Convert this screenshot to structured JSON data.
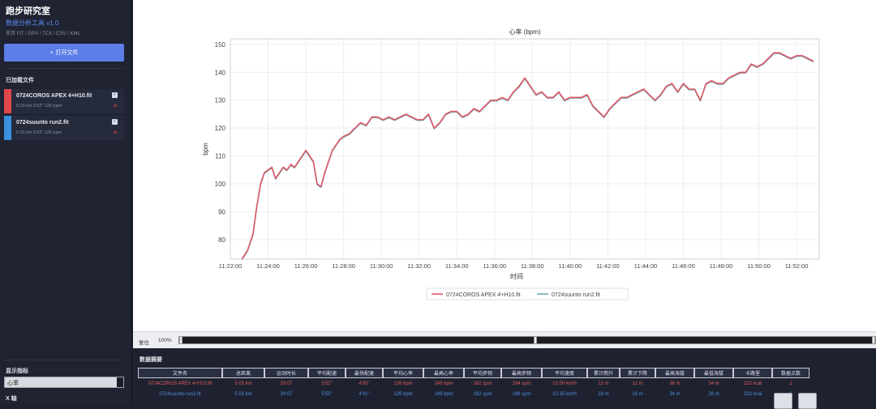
{
  "sidebar": {
    "title": "跑步研究室",
    "subtitle": "数据分析工具 v1.0",
    "formats": "支持 FIT / GPX / TCX / CSV / KML",
    "open_button": "打开文件",
    "loaded_header": "已加载文件",
    "files": [
      {
        "name": "0724COROS APEX 4+H10.fit",
        "meta": "5.03 km  5'52\"  126 bpm",
        "color": "#e0464a"
      },
      {
        "name": "0724suunto run2.fit",
        "meta": "5.03 km  5'53\"  126 bpm",
        "color": "#3a8fe0"
      }
    ],
    "metric_header": "显示指标",
    "metric_value": "心率",
    "xaxis_header": "X 轴"
  },
  "chart_data": {
    "type": "line",
    "title": "心率 (bpm)",
    "xlabel": "时间",
    "ylabel": "bpm",
    "ylim": [
      73,
      152
    ],
    "yticks": [
      80,
      90,
      100,
      110,
      120,
      130,
      140,
      150
    ],
    "xticks": [
      "11:22:00",
      "11:24:00",
      "11:26:00",
      "11:28:00",
      "11:30:00",
      "11:32:00",
      "11:34:00",
      "11:36:00",
      "11:38:00",
      "11:40:00",
      "11:42:00",
      "11:44:00",
      "11:46:00",
      "11:48:00",
      "11:50:00",
      "11:52:00"
    ],
    "xlim_minutes": [
      0,
      31.2
    ],
    "grid": true,
    "legend_position": "bottom",
    "x_minutes": [
      0.6,
      0.9,
      1.2,
      1.4,
      1.6,
      1.8,
      2.0,
      2.2,
      2.4,
      2.6,
      2.8,
      3.0,
      3.2,
      3.4,
      3.6,
      3.8,
      4.0,
      4.2,
      4.4,
      4.6,
      4.8,
      5.0,
      5.2,
      5.4,
      5.6,
      5.8,
      6.0,
      6.3,
      6.6,
      6.9,
      7.2,
      7.5,
      7.8,
      8.1,
      8.4,
      8.7,
      9.0,
      9.3,
      9.6,
      9.9,
      10.2,
      10.5,
      10.8,
      11.1,
      11.4,
      11.7,
      12.0,
      12.3,
      12.6,
      12.9,
      13.2,
      13.5,
      13.8,
      14.1,
      14.4,
      14.7,
      15.0,
      15.3,
      15.6,
      15.9,
      16.2,
      16.5,
      16.8,
      17.1,
      17.4,
      17.7,
      18.0,
      18.3,
      18.6,
      18.9,
      19.2,
      19.5,
      19.8,
      20.1,
      20.4,
      20.7,
      21.0,
      21.3,
      21.6,
      21.9,
      22.2,
      22.5,
      22.8,
      23.1,
      23.4,
      23.7,
      24.0,
      24.3,
      24.6,
      24.9,
      25.2,
      25.5,
      25.8,
      26.1,
      26.4,
      26.7,
      27.0,
      27.3,
      27.6,
      27.9,
      28.2,
      28.5,
      28.8,
      29.1,
      29.4,
      29.7,
      30.0,
      30.3,
      30.6,
      30.9
    ],
    "series": [
      {
        "name": "0724COROS APEX 4+H10.fit",
        "color": "#e05a66",
        "values": [
          73,
          76,
          82,
          92,
          100,
          104,
          105,
          106,
          102,
          104,
          106,
          105,
          107,
          106,
          108,
          110,
          112,
          110,
          108,
          100,
          99,
          104,
          108,
          112,
          114,
          116,
          117,
          118,
          120,
          122,
          121,
          124,
          124,
          123,
          124,
          123,
          124,
          125,
          124,
          123,
          123,
          125,
          120,
          122,
          125,
          126,
          126,
          124,
          125,
          127,
          126,
          128,
          130,
          130,
          131,
          130,
          133,
          135,
          138,
          135,
          132,
          133,
          131,
          131,
          133,
          130,
          131,
          131,
          131,
          132,
          128,
          126,
          124,
          127,
          129,
          131,
          131,
          132,
          133,
          134,
          132,
          130,
          132,
          135,
          136,
          133,
          136,
          134,
          134,
          130,
          136,
          137,
          136,
          136,
          138,
          139,
          140,
          140,
          143,
          142,
          143,
          145,
          147,
          147,
          146,
          145,
          146,
          146,
          145,
          144
        ]
      },
      {
        "name": "0724suunto run2.fit",
        "color": "#6fa6b2",
        "values": [
          73,
          76,
          82,
          92,
          100,
          104,
          105,
          106,
          102,
          104,
          106,
          105,
          107,
          106,
          108,
          110,
          112,
          110,
          108,
          100,
          99,
          104,
          108,
          112,
          114,
          116,
          117,
          118,
          120,
          122,
          121,
          124,
          124,
          123,
          124,
          123,
          124,
          125,
          124,
          123,
          123,
          125,
          120,
          122,
          125,
          126,
          126,
          124,
          125,
          127,
          126,
          128,
          130,
          130,
          131,
          130,
          133,
          135,
          138,
          135,
          132,
          133,
          131,
          131,
          133,
          130,
          131,
          131,
          131,
          132,
          128,
          126,
          124,
          127,
          129,
          131,
          131,
          132,
          133,
          134,
          132,
          130,
          132,
          135,
          136,
          133,
          136,
          134,
          134,
          130,
          136,
          137,
          136,
          136,
          138,
          139,
          140,
          140,
          143,
          142,
          143,
          145,
          147,
          147,
          146,
          145,
          146,
          146,
          145,
          144
        ]
      }
    ]
  },
  "toolbar": {
    "reset": "复位",
    "zoom": "100%"
  },
  "summary": {
    "title": "数据摘要",
    "headers": [
      "文件名",
      "总距离",
      "运动时长",
      "平均配速",
      "最快配速",
      "平均心率",
      "最高心率",
      "平均步频",
      "最高步频",
      "平均速度",
      "累计爬升",
      "累计下降",
      "最高海拔",
      "最低海拔",
      "卡路里",
      "数据点数"
    ],
    "rows": [
      [
        "0724COROS APEX 4+H10.fit",
        "5.03 km",
        "29:07",
        "5'52\"",
        "4'05\"",
        "126 bpm",
        "149 bpm",
        "182 spm",
        "194 spm",
        "10.50 km/h",
        "12 m",
        "12 m",
        "38 m",
        "34 m",
        "223 kcal",
        "1"
      ],
      [
        "0724suunto run2.fit",
        "5.03 km",
        "29:07",
        "5'53\"",
        "4'41\"",
        "126 bpm",
        "149 bpm",
        "182 spm",
        "186 spm",
        "10.35 km/h",
        "18 m",
        "16 m",
        "34 m",
        "28 m",
        "223 kcal",
        "1"
      ]
    ]
  }
}
